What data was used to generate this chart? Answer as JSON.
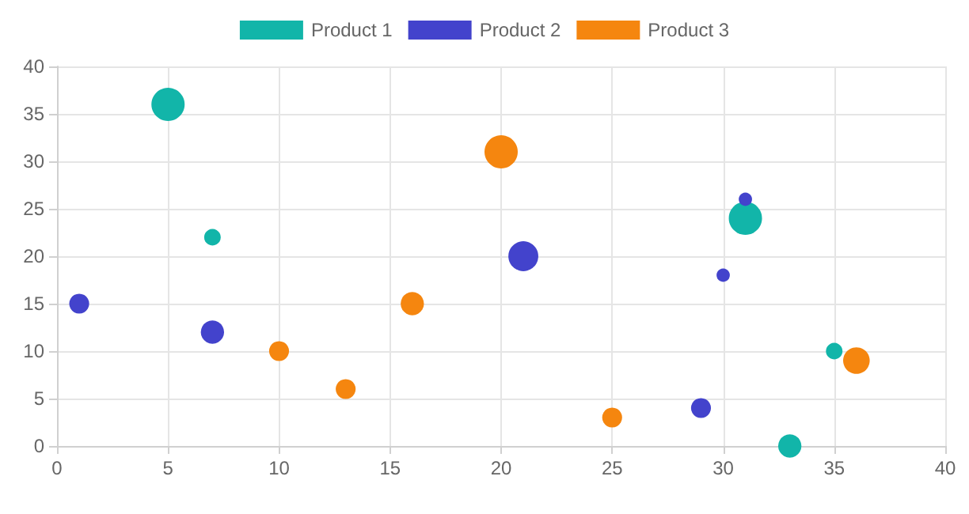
{
  "chart_data": {
    "type": "bubble",
    "legend": "top",
    "grid": true,
    "marker": "circle",
    "xlim": [
      0,
      40
    ],
    "xticks": [
      0,
      5,
      10,
      15,
      20,
      25,
      30,
      35,
      40
    ],
    "ylim": [
      0,
      40
    ],
    "yticks": [
      0,
      5,
      10,
      15,
      20,
      25,
      30,
      35,
      40
    ],
    "series": [
      {
        "name": "Product 1",
        "color": "#12b5a9",
        "x": [
          5,
          7,
          31,
          35,
          33
        ],
        "values": [
          36,
          22,
          24,
          10,
          0
        ],
        "sizes": [
          1,
          0.25,
          1,
          0.25,
          0.49
        ]
      },
      {
        "name": "Product 2",
        "color": "#4343cc",
        "x": [
          1,
          7,
          21,
          31,
          30,
          29
        ],
        "values": [
          15,
          12,
          20,
          26,
          18,
          4
        ],
        "sizes": [
          0.36,
          0.49,
          0.81,
          0.16,
          0.16,
          0.36
        ]
      },
      {
        "name": "Product 3",
        "color": "#f5860f",
        "x": [
          20,
          16,
          10,
          13,
          25,
          36
        ],
        "values": [
          31,
          15,
          10,
          6,
          3,
          9
        ],
        "sizes": [
          1,
          0.49,
          0.36,
          0.36,
          0.36,
          0.64
        ]
      }
    ]
  }
}
